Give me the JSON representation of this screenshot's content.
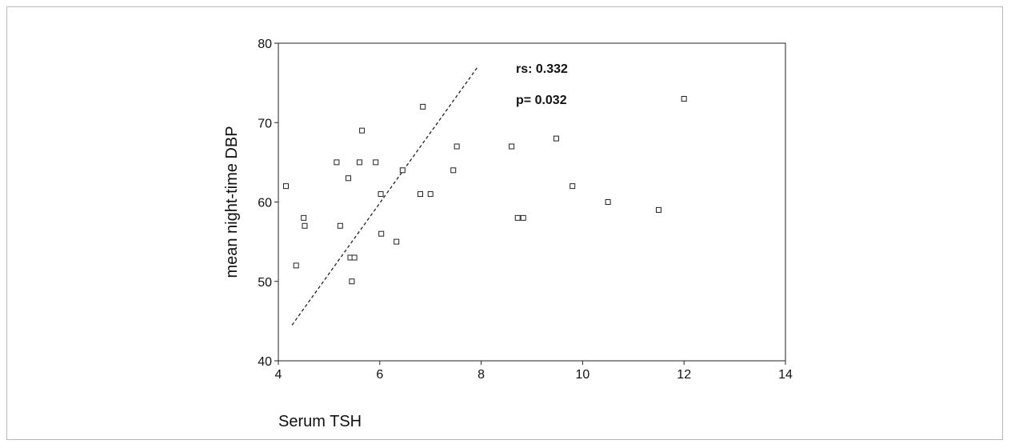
{
  "chart_data": {
    "type": "scatter",
    "title": "",
    "xlabel": "Serum TSH",
    "ylabel": "mean night-time DBP",
    "xlim": [
      4,
      14
    ],
    "ylim": [
      40,
      80
    ],
    "xticks": [
      4,
      6,
      8,
      10,
      12,
      14
    ],
    "yticks": [
      40,
      50,
      60,
      70,
      80
    ],
    "grid": false,
    "legend": "none",
    "points": [
      {
        "x": 4.15,
        "y": 62
      },
      {
        "x": 4.35,
        "y": 52
      },
      {
        "x": 4.5,
        "y": 58
      },
      {
        "x": 4.52,
        "y": 57
      },
      {
        "x": 5.15,
        "y": 65
      },
      {
        "x": 5.22,
        "y": 57
      },
      {
        "x": 5.38,
        "y": 63
      },
      {
        "x": 5.42,
        "y": 53
      },
      {
        "x": 5.45,
        "y": 50
      },
      {
        "x": 5.5,
        "y": 53
      },
      {
        "x": 5.6,
        "y": 65
      },
      {
        "x": 5.65,
        "y": 69
      },
      {
        "x": 5.92,
        "y": 65
      },
      {
        "x": 6.02,
        "y": 61
      },
      {
        "x": 6.03,
        "y": 56
      },
      {
        "x": 6.33,
        "y": 55
      },
      {
        "x": 6.45,
        "y": 64
      },
      {
        "x": 6.8,
        "y": 61
      },
      {
        "x": 6.85,
        "y": 72
      },
      {
        "x": 7.0,
        "y": 61
      },
      {
        "x": 7.45,
        "y": 64
      },
      {
        "x": 7.52,
        "y": 67
      },
      {
        "x": 8.6,
        "y": 67
      },
      {
        "x": 8.72,
        "y": 58
      },
      {
        "x": 8.83,
        "y": 58
      },
      {
        "x": 9.48,
        "y": 68
      },
      {
        "x": 9.8,
        "y": 62
      },
      {
        "x": 10.5,
        "y": 60
      },
      {
        "x": 11.5,
        "y": 59
      },
      {
        "x": 12.0,
        "y": 73
      }
    ],
    "fit_line": {
      "x": [
        4.27,
        7.93
      ],
      "y": [
        44.5,
        77
      ]
    },
    "annotations": [
      "rs: 0.332",
      "p= 0.032"
    ],
    "marker_color": "#222222",
    "line_color": "#222222"
  }
}
